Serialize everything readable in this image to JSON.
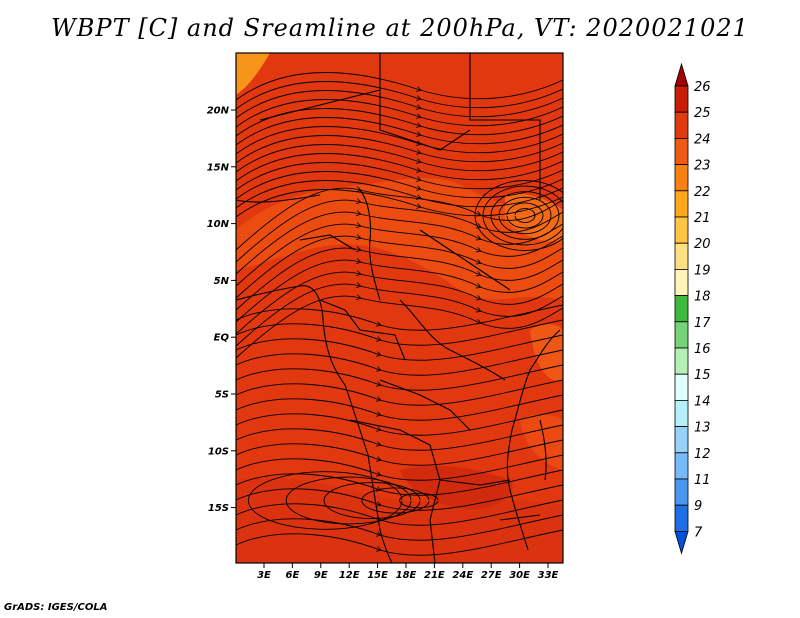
{
  "title": "WBPT [C] and Sreamline at 200hPa, VT: 2020021021",
  "footer": "GrADS: IGES/COLA",
  "map": {
    "lat_labels": [
      "20N",
      "15N",
      "10N",
      "5N",
      "EQ",
      "5S",
      "10S",
      "15S"
    ],
    "lon_labels": [
      "3E",
      "6E",
      "9E",
      "12E",
      "15E",
      "18E",
      "21E",
      "24E",
      "27E",
      "30E",
      "33E"
    ],
    "field_colors": {
      "base": "#e43c10",
      "warm": "#f05a12",
      "hot": "#d42b0c"
    }
  },
  "colorbar": {
    "levels": [
      "26",
      "25",
      "24",
      "23",
      "22",
      "21",
      "20",
      "19",
      "18",
      "17",
      "16",
      "15",
      "14",
      "13",
      "12",
      "11",
      "9",
      "7"
    ],
    "colors": [
      "#a50000",
      "#c81e05",
      "#e03a0f",
      "#f05a12",
      "#f98114",
      "#fea81d",
      "#fec444",
      "#fde07f",
      "#fff5b8",
      "#3cba3c",
      "#78d278",
      "#b4f0b4",
      "#e1ffff",
      "#b4f0fa",
      "#96d2fa",
      "#78b9fa",
      "#4b96f0",
      "#1e6ee6",
      "#0050dc"
    ]
  }
}
